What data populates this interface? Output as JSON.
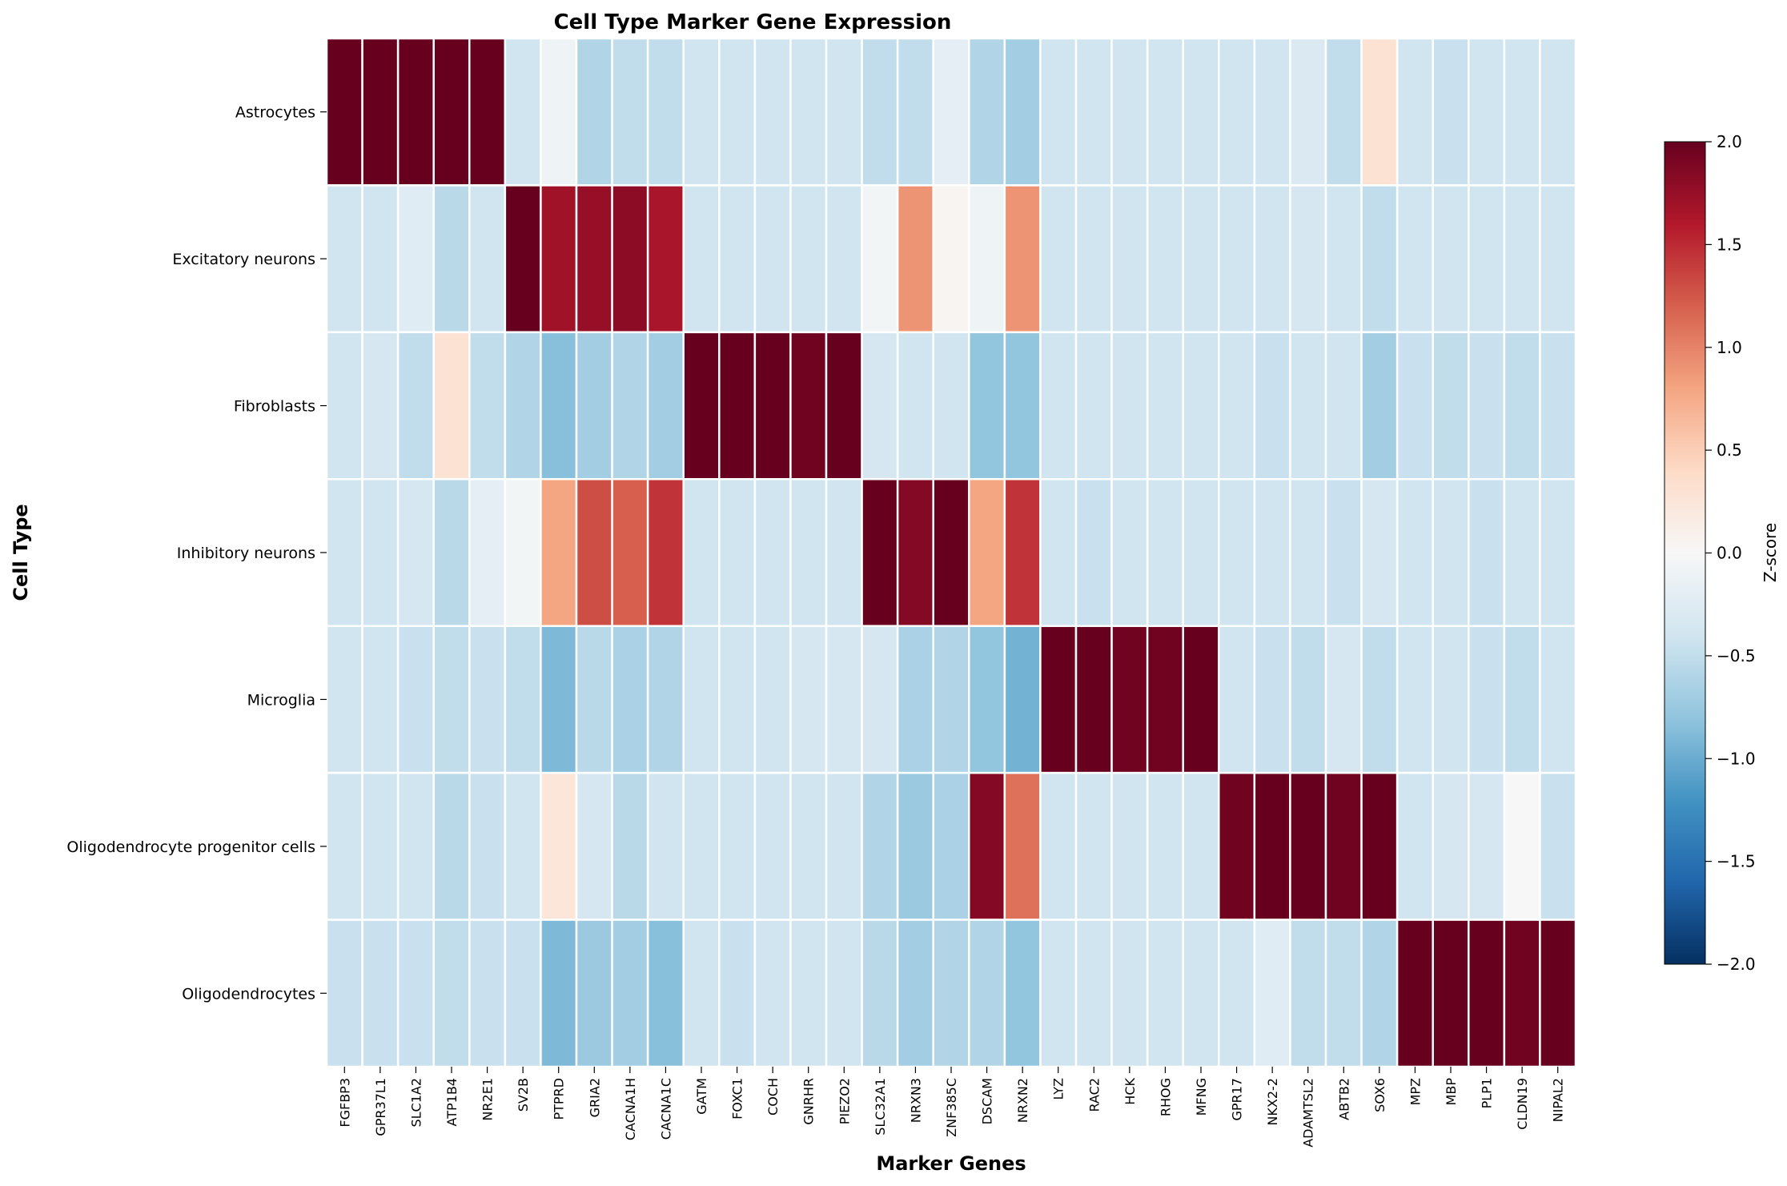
{
  "chart_data": {
    "type": "heatmap",
    "title": "Cell Type Marker Gene Expression",
    "xlabel": "Marker Genes",
    "ylabel": "Cell Type",
    "rows": [
      "Astrocytes",
      "Excitatory neurons",
      "Fibroblasts",
      "Inhibitory neurons",
      "Microglia",
      "Oligodendrocyte progenitor cells",
      "Oligodendrocytes"
    ],
    "columns": [
      "FGFBP3",
      "GPR37L1",
      "SLC1A2",
      "ATP1B4",
      "NR2E1",
      "SV2B",
      "PTPRD",
      "GRIA2",
      "CACNA1H",
      "CACNA1C",
      "GATM",
      "FOXC1",
      "COCH",
      "GNRHR",
      "PIEZO2",
      "SLC32A1",
      "NRXN3",
      "ZNF385C",
      "DSCAM",
      "NRXN2",
      "LYZ",
      "RAC2",
      "HCK",
      "RHOG",
      "MFNG",
      "GPR17",
      "NKX2-2",
      "ADAMTSL2",
      "ABTB2",
      "SOX6",
      "MPZ",
      "MBP",
      "PLP1",
      "CLDN19",
      "NIPAL2"
    ],
    "values": [
      [
        2.0,
        2.0,
        2.0,
        2.0,
        2.0,
        -0.4,
        -0.1,
        -0.6,
        -0.5,
        -0.5,
        -0.4,
        -0.4,
        -0.4,
        -0.4,
        -0.4,
        -0.5,
        -0.5,
        -0.2,
        -0.6,
        -0.7,
        -0.4,
        -0.4,
        -0.4,
        -0.4,
        -0.4,
        -0.4,
        -0.4,
        -0.3,
        -0.5,
        0.3,
        -0.4,
        -0.45,
        -0.4,
        -0.4,
        -0.4
      ],
      [
        -0.4,
        -0.4,
        -0.25,
        -0.55,
        -0.4,
        2.0,
        1.7,
        1.75,
        1.8,
        1.65,
        -0.4,
        -0.4,
        -0.4,
        -0.4,
        -0.4,
        -0.05,
        0.9,
        0.05,
        -0.1,
        0.9,
        -0.4,
        -0.4,
        -0.4,
        -0.4,
        -0.4,
        -0.4,
        -0.4,
        -0.35,
        -0.4,
        -0.5,
        -0.4,
        -0.4,
        -0.4,
        -0.4,
        -0.4
      ],
      [
        -0.4,
        -0.35,
        -0.5,
        0.3,
        -0.5,
        -0.6,
        -0.85,
        -0.7,
        -0.6,
        -0.7,
        2.0,
        2.0,
        2.0,
        1.95,
        2.0,
        -0.35,
        -0.4,
        -0.4,
        -0.8,
        -0.8,
        -0.4,
        -0.4,
        -0.4,
        -0.4,
        -0.4,
        -0.4,
        -0.45,
        -0.4,
        -0.4,
        -0.7,
        -0.45,
        -0.5,
        -0.45,
        -0.5,
        -0.45
      ],
      [
        -0.4,
        -0.4,
        -0.35,
        -0.55,
        -0.2,
        -0.05,
        0.8,
        1.3,
        1.2,
        1.45,
        -0.4,
        -0.4,
        -0.4,
        -0.4,
        -0.4,
        2.0,
        1.85,
        2.0,
        0.8,
        1.45,
        -0.4,
        -0.45,
        -0.4,
        -0.4,
        -0.4,
        -0.4,
        -0.4,
        -0.4,
        -0.45,
        -0.35,
        -0.4,
        -0.4,
        -0.45,
        -0.4,
        -0.4
      ],
      [
        -0.4,
        -0.4,
        -0.45,
        -0.5,
        -0.45,
        -0.5,
        -0.9,
        -0.55,
        -0.65,
        -0.6,
        -0.4,
        -0.4,
        -0.4,
        -0.35,
        -0.35,
        -0.35,
        -0.65,
        -0.6,
        -0.8,
        -0.95,
        2.0,
        2.0,
        1.95,
        1.95,
        2.0,
        -0.4,
        -0.45,
        -0.5,
        -0.35,
        -0.5,
        -0.4,
        -0.4,
        -0.45,
        -0.5,
        -0.4
      ],
      [
        -0.4,
        -0.4,
        -0.4,
        -0.55,
        -0.45,
        -0.4,
        0.25,
        -0.35,
        -0.55,
        -0.4,
        -0.4,
        -0.4,
        -0.4,
        -0.4,
        -0.4,
        -0.6,
        -0.75,
        -0.65,
        1.85,
        1.1,
        -0.4,
        -0.4,
        -0.4,
        -0.4,
        -0.4,
        1.95,
        2.0,
        2.0,
        1.95,
        2.0,
        -0.4,
        -0.35,
        -0.35,
        0.0,
        -0.45
      ],
      [
        -0.45,
        -0.45,
        -0.45,
        -0.5,
        -0.45,
        -0.45,
        -0.9,
        -0.75,
        -0.7,
        -0.85,
        -0.4,
        -0.45,
        -0.4,
        -0.4,
        -0.4,
        -0.55,
        -0.7,
        -0.6,
        -0.6,
        -0.8,
        -0.4,
        -0.4,
        -0.4,
        -0.4,
        -0.4,
        -0.4,
        -0.25,
        -0.5,
        -0.5,
        -0.6,
        2.0,
        2.0,
        2.0,
        1.95,
        2.0
      ]
    ],
    "colormap": "RdBu_r",
    "vmin": -2.0,
    "vmax": 2.0,
    "colorbar": {
      "label": "Z-score",
      "ticks": [
        "2.0",
        "1.5",
        "1.0",
        "0.5",
        "0.0",
        "−0.5",
        "−1.0",
        "−1.5",
        "−2.0"
      ],
      "tick_values": [
        2.0,
        1.5,
        1.0,
        0.5,
        0.0,
        -0.5,
        -1.0,
        -1.5,
        -2.0
      ]
    },
    "grid": "white cell borders",
    "legend_position": "right"
  }
}
